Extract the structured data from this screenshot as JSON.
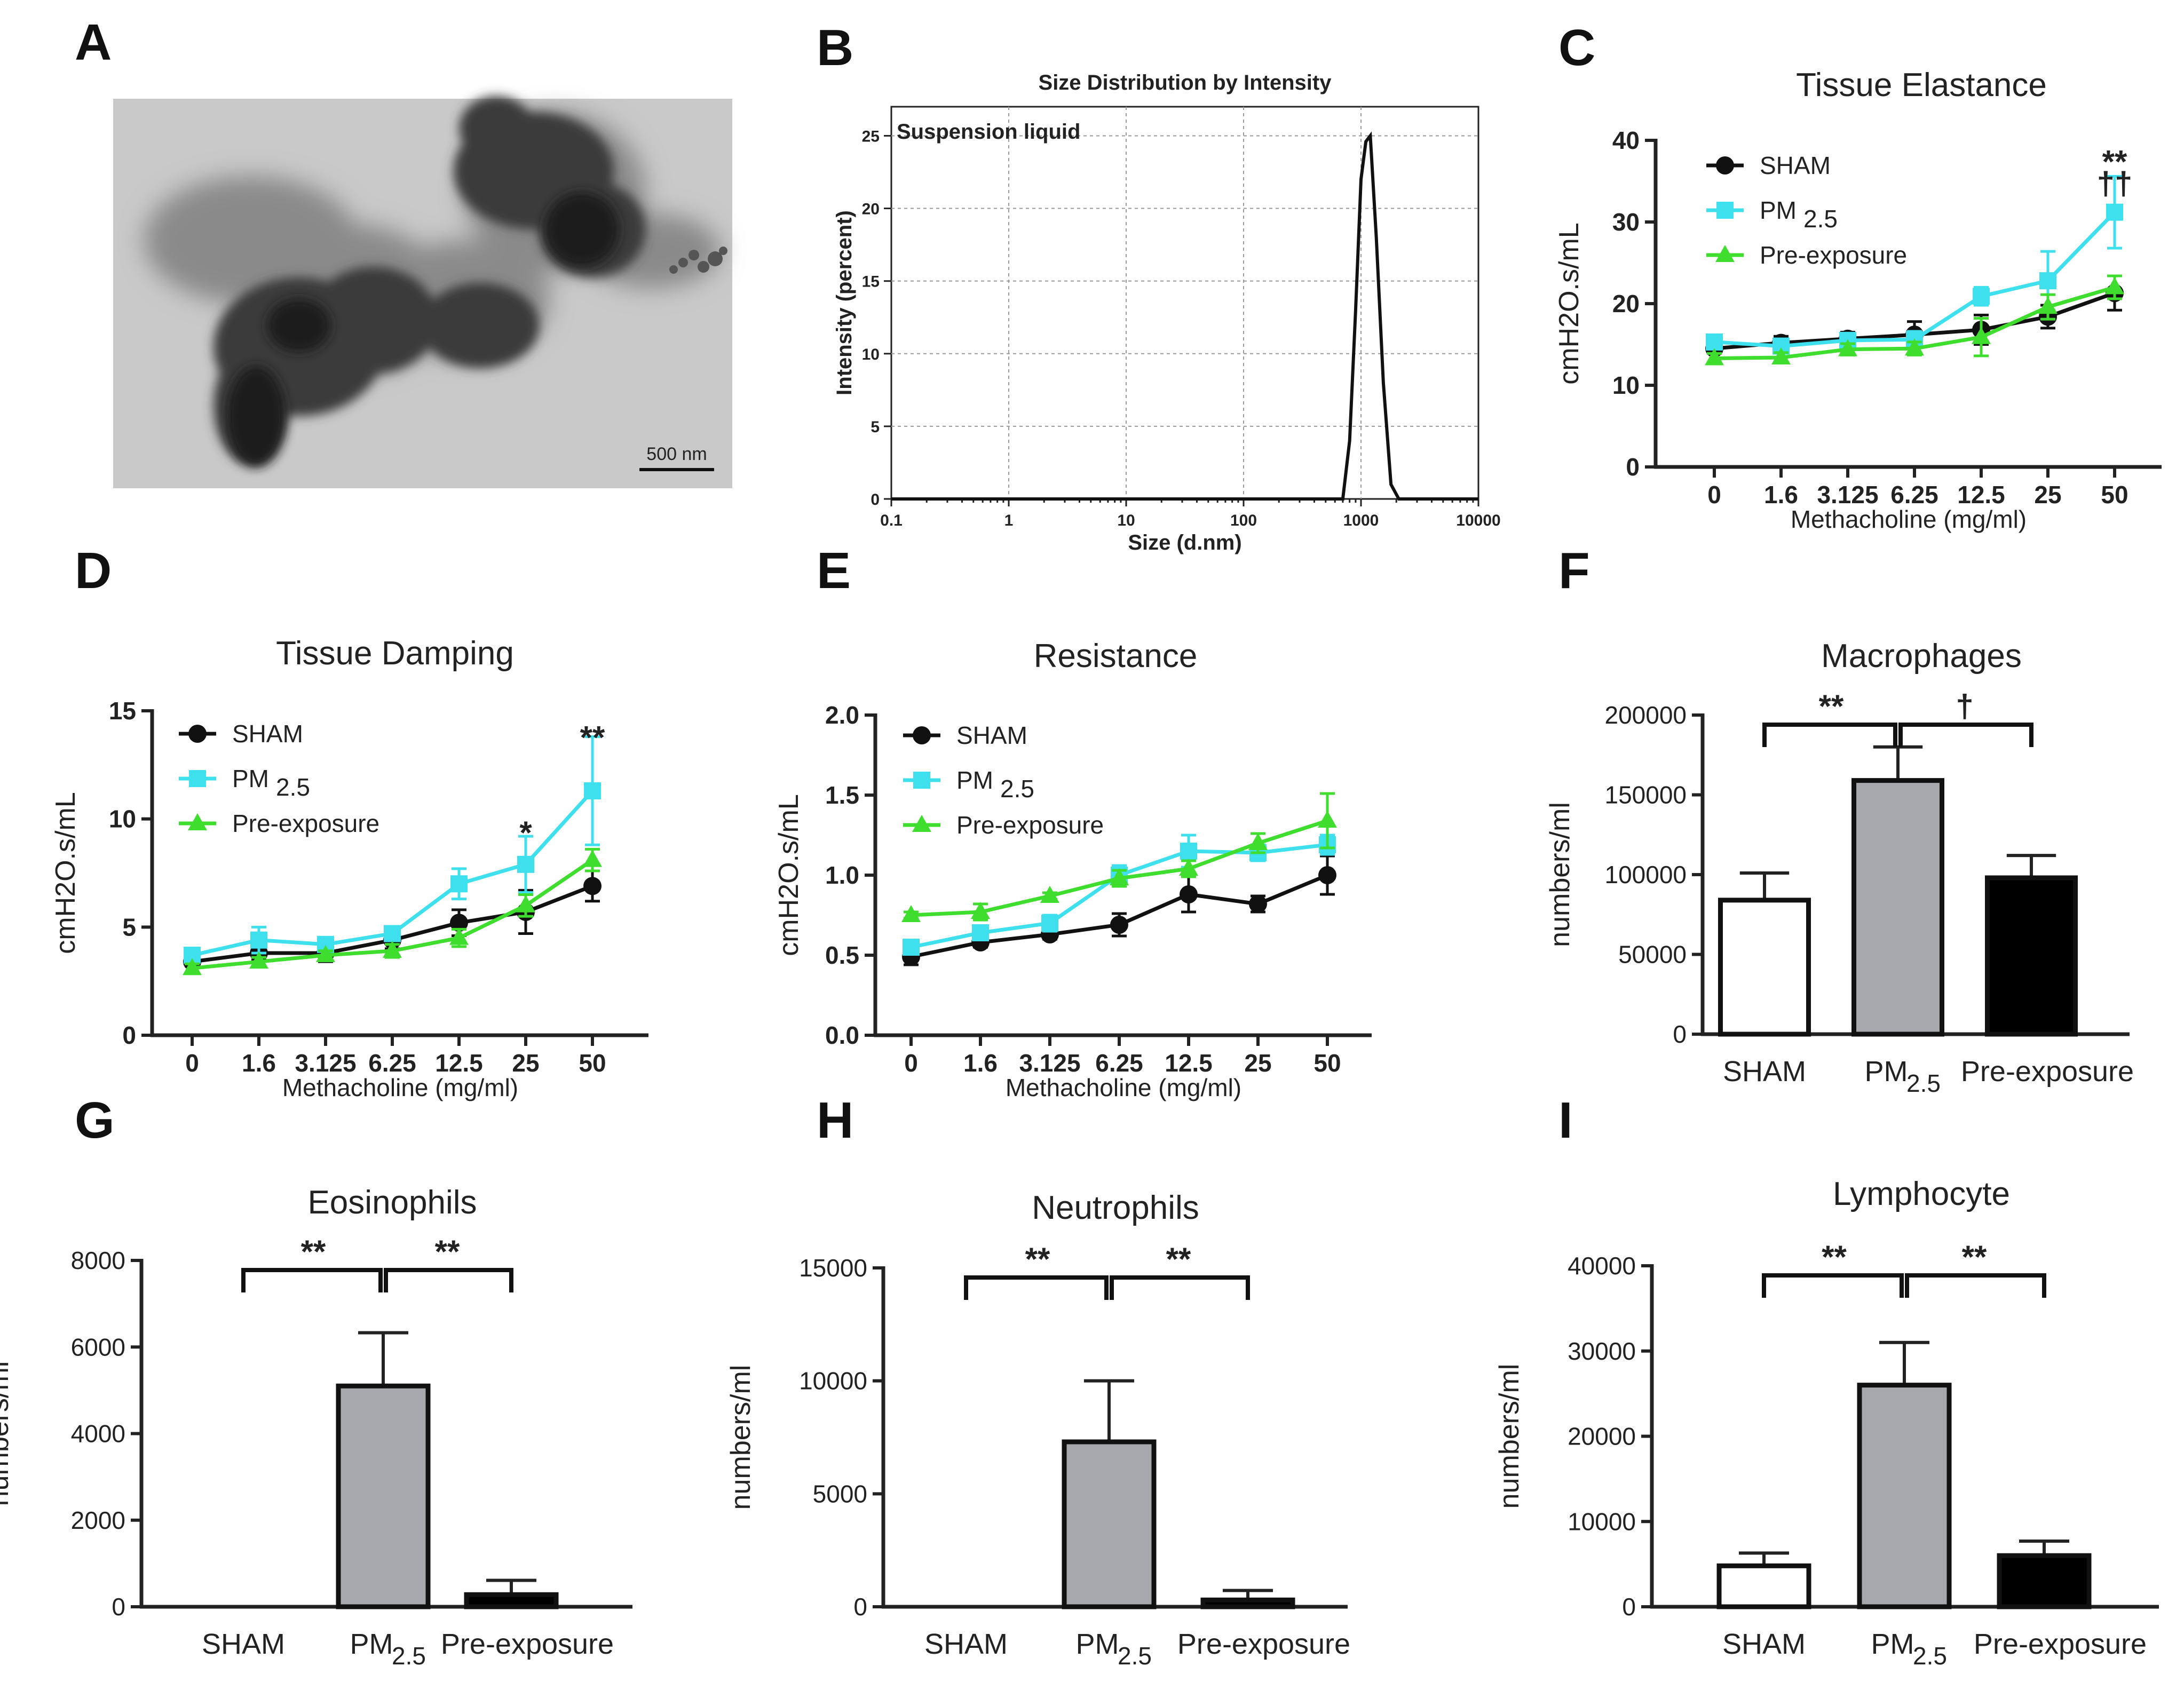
{
  "panels": {
    "A": {
      "letter": "A",
      "scale_bar": "500 nm",
      "image_desc": "TEM micrograph of PM2.5 particles"
    },
    "B": {
      "letter": "B"
    },
    "C": {
      "letter": "C"
    },
    "D": {
      "letter": "D"
    },
    "E": {
      "letter": "E"
    },
    "F": {
      "letter": "F"
    },
    "G": {
      "letter": "G"
    },
    "H": {
      "letter": "H"
    },
    "I": {
      "letter": "I"
    }
  },
  "colors": {
    "sham": "#111111",
    "pm25": "#3EE0EE",
    "pre": "#3FDD2E",
    "bar_pm": "#A7A7AE",
    "bar_pre": "#000000"
  },
  "chart_data": [
    {
      "id": "B",
      "type": "line",
      "title": "Size Distribution by Intensity",
      "annotation": "Suspension liquid",
      "xlabel": "Size (d.nm)",
      "ylabel": "Intensity (percent)",
      "xscale": "log",
      "xlim": [
        0.1,
        10000
      ],
      "ylim": [
        0,
        27
      ],
      "xticks": [
        0.1,
        1,
        10,
        100,
        1000,
        10000
      ],
      "xtick_labels": [
        "0.1",
        "1",
        "10",
        "100",
        "1000",
        "10000"
      ],
      "yticks": [
        0,
        5,
        10,
        15,
        20,
        25
      ],
      "x": [
        0.1,
        700,
        800,
        900,
        1000,
        1100,
        1200,
        1350,
        1550,
        1800,
        2100,
        10000
      ],
      "y": [
        0,
        0,
        4,
        13,
        22,
        24.6,
        25,
        18,
        8,
        1,
        0,
        0
      ]
    },
    {
      "id": "C",
      "type": "line",
      "title": "Tissue Elastance",
      "xlabel": "Methacholine (mg/ml)",
      "ylabel": "cmH2O.s/mL",
      "ylim": [
        0,
        40
      ],
      "yticks": [
        0,
        10,
        20,
        30,
        40
      ],
      "categories": [
        "0",
        "1.6",
        "3.125",
        "6.25",
        "12.5",
        "25",
        "50"
      ],
      "legend": [
        "SHAM",
        "PM",
        "2.5",
        "Pre-exposure"
      ],
      "series": [
        {
          "name": "SHAM",
          "color": "#111111",
          "marker": "circle",
          "values": [
            14.5,
            15.2,
            15.7,
            16.2,
            16.8,
            18.4,
            21.3
          ],
          "errors": [
            0.6,
            0.8,
            0.8,
            1.6,
            1.8,
            1.4,
            2.1
          ]
        },
        {
          "name": "PM2.5",
          "color": "#3EE0EE",
          "marker": "square",
          "values": [
            15.3,
            14.8,
            15.5,
            15.6,
            20.9,
            22.8,
            31.2
          ],
          "errors": [
            0.7,
            0.8,
            0.7,
            1.0,
            1.1,
            3.6,
            4.4
          ]
        },
        {
          "name": "Pre-exposure",
          "color": "#3FDD2E",
          "marker": "triangle",
          "values": [
            13.3,
            13.4,
            14.4,
            14.5,
            15.9,
            19.6,
            22.0
          ],
          "errors": [
            0.6,
            0.6,
            0.7,
            0.8,
            2.3,
            1.5,
            1.4
          ]
        }
      ],
      "annotations": [
        {
          "text": "**",
          "category": "50",
          "y": 37.5
        },
        {
          "text": "††",
          "category": "50",
          "y": 34.8
        }
      ]
    },
    {
      "id": "D",
      "type": "line",
      "title": "Tissue Damping",
      "xlabel": "Methacholine (mg/ml)",
      "ylabel": "cmH2O.s/mL",
      "ylim": [
        0,
        15
      ],
      "yticks": [
        0,
        5,
        10,
        15
      ],
      "categories": [
        "0",
        "1.6",
        "3.125",
        "6.25",
        "12.5",
        "25",
        "50"
      ],
      "legend": [
        "SHAM",
        "PM",
        "2.5",
        "Pre-exposure"
      ],
      "series": [
        {
          "name": "SHAM",
          "color": "#111111",
          "marker": "circle",
          "values": [
            3.4,
            3.8,
            3.8,
            4.4,
            5.2,
            5.7,
            6.9
          ],
          "errors": [
            0.2,
            0.3,
            0.4,
            0.4,
            0.6,
            1.0,
            0.7
          ]
        },
        {
          "name": "PM2.5",
          "color": "#3EE0EE",
          "marker": "square",
          "values": [
            3.7,
            4.4,
            4.2,
            4.7,
            7.0,
            7.9,
            11.3
          ],
          "errors": [
            0.2,
            0.6,
            0.3,
            0.3,
            0.7,
            1.3,
            2.5
          ]
        },
        {
          "name": "Pre-exposure",
          "color": "#3FDD2E",
          "marker": "triangle",
          "values": [
            3.1,
            3.4,
            3.7,
            3.9,
            4.5,
            6.0,
            8.1
          ],
          "errors": [
            0.2,
            0.2,
            0.2,
            0.3,
            0.4,
            0.5,
            0.5
          ]
        }
      ],
      "annotations": [
        {
          "text": "*",
          "category": "25",
          "y": 9.4
        },
        {
          "text": "**",
          "category": "50",
          "y": 13.8
        }
      ]
    },
    {
      "id": "E",
      "type": "line",
      "title": "Resistance",
      "xlabel": "Methacholine (mg/ml)",
      "ylabel": "cmH2O.s/mL",
      "ylim": [
        0,
        2.0
      ],
      "yticks": [
        0,
        0.5,
        1.0,
        1.5,
        2.0
      ],
      "ytick_labels": [
        "0.0",
        "0.5",
        "1.0",
        "1.5",
        "2.0"
      ],
      "categories": [
        "0",
        "1.6",
        "3.125",
        "6.25",
        "12.5",
        "25",
        "50"
      ],
      "legend": [
        "SHAM",
        "PM",
        "2.5",
        "Pre-exposure"
      ],
      "series": [
        {
          "name": "SHAM",
          "color": "#111111",
          "marker": "circle",
          "values": [
            0.49,
            0.58,
            0.63,
            0.69,
            0.88,
            0.82,
            1.0
          ],
          "errors": [
            0.05,
            0.03,
            0.03,
            0.07,
            0.11,
            0.05,
            0.12
          ]
        },
        {
          "name": "PM2.5",
          "color": "#3EE0EE",
          "marker": "square",
          "values": [
            0.55,
            0.64,
            0.7,
            1.0,
            1.15,
            1.14,
            1.19
          ],
          "errors": [
            0.03,
            0.03,
            0.05,
            0.06,
            0.1,
            0.05,
            0.06
          ]
        },
        {
          "name": "Pre-exposure",
          "color": "#3FDD2E",
          "marker": "triangle",
          "values": [
            0.75,
            0.77,
            0.87,
            0.98,
            1.04,
            1.2,
            1.34
          ],
          "errors": [
            0.02,
            0.05,
            0.02,
            0.05,
            0.05,
            0.06,
            0.17
          ]
        }
      ]
    },
    {
      "id": "F",
      "type": "bar",
      "title": "Macrophages",
      "ylabel": "numbers/ml",
      "ylim": [
        0,
        200000
      ],
      "yticks": [
        0,
        50000,
        100000,
        150000,
        200000
      ],
      "categories": [
        "SHAM",
        "PM",
        "Pre-exposure"
      ],
      "category_sub": [
        "",
        "2.5",
        ""
      ],
      "values": [
        84000,
        159000,
        98000
      ],
      "errors": [
        17000,
        21000,
        14000
      ],
      "fills": [
        "#ffffff",
        "#A7A7AE",
        "#000000"
      ],
      "brackets": [
        {
          "from": 0,
          "to": 1,
          "label": "**"
        },
        {
          "from": 1,
          "to": 2,
          "label": "†"
        }
      ]
    },
    {
      "id": "G",
      "type": "bar",
      "title": "Eosinophils",
      "ylabel": "numbers/ml",
      "ylim": [
        0,
        8000
      ],
      "yticks": [
        0,
        2000,
        4000,
        6000,
        8000
      ],
      "categories": [
        "SHAM",
        "PM",
        "Pre-exposure"
      ],
      "category_sub": [
        "",
        "2.5",
        ""
      ],
      "values": [
        0,
        5100,
        280
      ],
      "errors": [
        0,
        1230,
        330
      ],
      "fills": [
        "#ffffff",
        "#A7A7AE",
        "#000000"
      ],
      "brackets": [
        {
          "from": 0,
          "to": 1,
          "label": "**"
        },
        {
          "from": 1,
          "to": 2,
          "label": "**"
        }
      ]
    },
    {
      "id": "H",
      "type": "bar",
      "title": "Neutrophils",
      "ylabel": "numbers/ml",
      "ylim": [
        0,
        15000
      ],
      "yticks": [
        0,
        5000,
        10000,
        15000
      ],
      "categories": [
        "SHAM",
        "PM",
        "Pre-exposure"
      ],
      "category_sub": [
        "",
        "2.5",
        ""
      ],
      "values": [
        0,
        7300,
        300
      ],
      "errors": [
        0,
        2700,
        420
      ],
      "fills": [
        "#ffffff",
        "#A7A7AE",
        "#000000"
      ],
      "brackets": [
        {
          "from": 0,
          "to": 1,
          "label": "**"
        },
        {
          "from": 1,
          "to": 2,
          "label": "**"
        }
      ]
    },
    {
      "id": "I",
      "type": "bar",
      "title": "Lymphocyte",
      "ylabel": "numbers/ml",
      "ylim": [
        0,
        40000
      ],
      "yticks": [
        0,
        10000,
        20000,
        30000,
        40000
      ],
      "categories": [
        "SHAM",
        "PM",
        "Pre-exposure"
      ],
      "category_sub": [
        "",
        "2.5",
        ""
      ],
      "values": [
        4800,
        26000,
        6000
      ],
      "errors": [
        1500,
        5000,
        1700
      ],
      "fills": [
        "#ffffff",
        "#A7A7AE",
        "#000000"
      ],
      "brackets": [
        {
          "from": 0,
          "to": 1,
          "label": "**"
        },
        {
          "from": 1,
          "to": 2,
          "label": "**"
        }
      ]
    }
  ]
}
